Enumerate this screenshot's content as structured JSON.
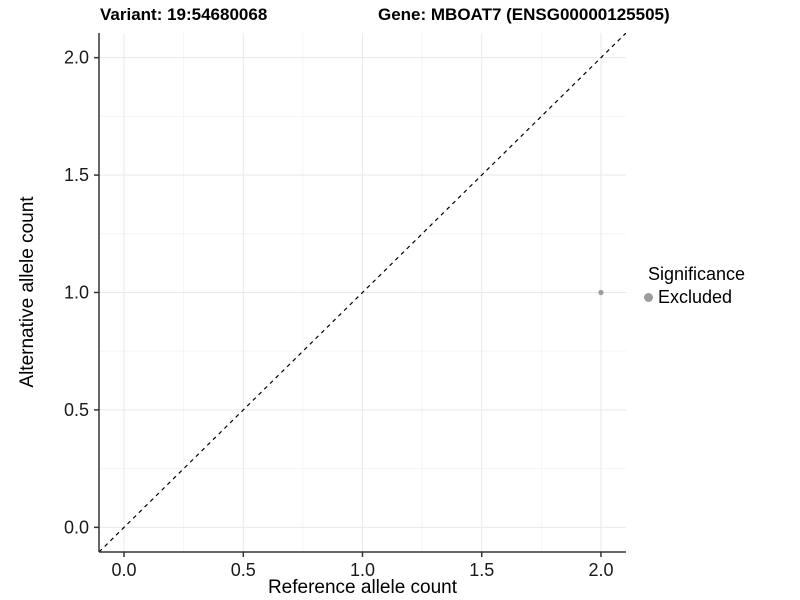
{
  "titles": {
    "variant": "Variant: 19:54680068",
    "gene": "Gene: MBOAT7 (ENSG00000125505)"
  },
  "chart_data": {
    "type": "scatter",
    "title_left": "Variant: 19:54680068",
    "title_right": "Gene: MBOAT7 (ENSG00000125505)",
    "xlabel": "Reference allele count",
    "ylabel": "Alternative allele count",
    "xlim": [
      -0.105,
      2.105
    ],
    "ylim": [
      -0.105,
      2.105
    ],
    "xticks": [
      0.0,
      0.5,
      1.0,
      1.5,
      2.0
    ],
    "yticks": [
      0.0,
      0.5,
      1.0,
      1.5,
      2.0
    ],
    "minor_xticks": [
      0.25,
      0.75,
      1.25,
      1.75
    ],
    "minor_yticks": [
      0.25,
      0.75,
      1.25,
      1.75
    ],
    "grid": true,
    "legend_position": "right",
    "reference_line": {
      "slope": 1,
      "intercept": 0,
      "style": "dashed",
      "color": "#000000"
    },
    "series": [
      {
        "name": "Excluded",
        "color": "#9c9c9c",
        "points": [
          {
            "x": 2.0,
            "y": 1.0
          }
        ]
      }
    ],
    "legend": {
      "title": "Significance",
      "items": [
        {
          "label": "Excluded",
          "color": "#9c9c9c"
        }
      ]
    }
  },
  "colors": {
    "major_grid": "#e9e9e9",
    "minor_grid": "#f5f5f5",
    "axis_line": "#333333",
    "tick_mark": "#333333",
    "tick_label": "#1a1a1a",
    "background": "#ffffff"
  }
}
